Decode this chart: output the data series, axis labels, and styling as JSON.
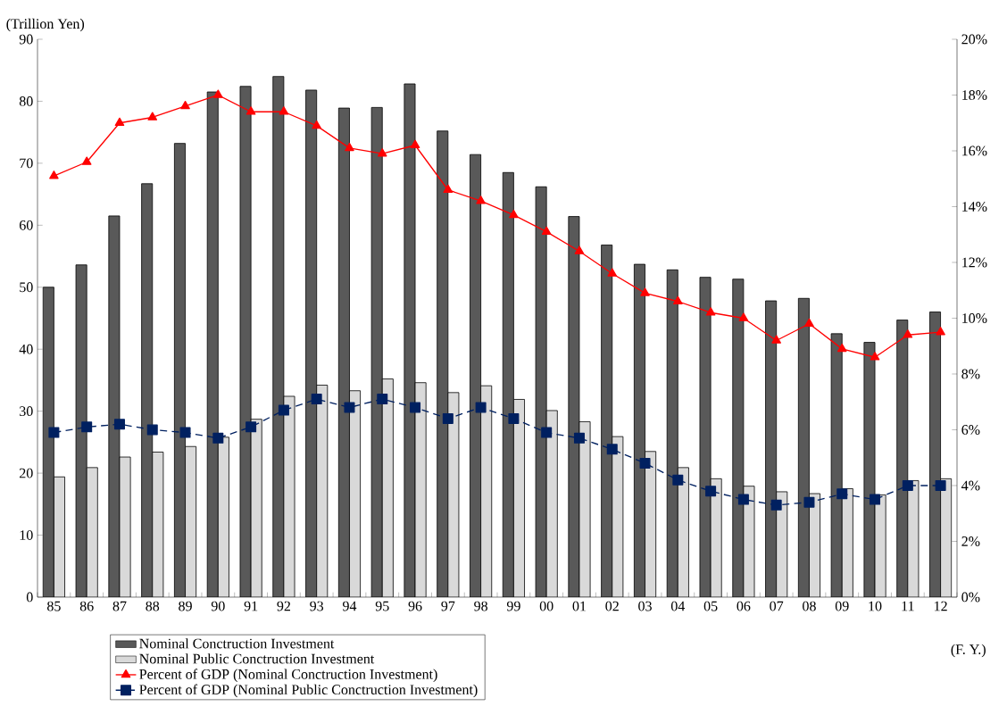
{
  "chart_data": {
    "type": "bar",
    "ylabel": "(Trillion Yen)",
    "xlabel": "(F. Y.)",
    "categories": [
      "85",
      "86",
      "87",
      "88",
      "89",
      "90",
      "91",
      "92",
      "93",
      "94",
      "95",
      "96",
      "97",
      "98",
      "99",
      "00",
      "01",
      "02",
      "03",
      "04",
      "05",
      "06",
      "07",
      "08",
      "09",
      "10",
      "11",
      "12"
    ],
    "series": [
      {
        "name": "Nominal Conctruction Investment",
        "color": "#595959",
        "values": [
          50.0,
          53.6,
          61.5,
          66.7,
          73.2,
          81.5,
          82.4,
          84.0,
          81.8,
          78.9,
          79.0,
          82.8,
          75.2,
          71.4,
          68.5,
          66.2,
          61.4,
          56.8,
          53.7,
          52.8,
          51.6,
          51.3,
          47.8,
          48.2,
          42.5,
          41.1,
          44.7,
          46.0
        ]
      },
      {
        "name": "Nominal Public Conctruction Investment",
        "color": "#d9d9d9",
        "values": [
          19.4,
          20.9,
          22.6,
          23.4,
          24.3,
          25.8,
          28.7,
          32.4,
          34.2,
          33.3,
          35.2,
          34.6,
          33.0,
          34.1,
          31.9,
          30.1,
          28.3,
          25.9,
          23.5,
          20.9,
          19.1,
          17.9,
          17.0,
          16.7,
          17.5,
          16.5,
          18.8,
          19.1
        ]
      },
      {
        "name": "Percent of GDP (Nominal Conctruction Investment)",
        "type": "line",
        "axis": "y2",
        "color": "#ff0000",
        "marker": "triangle",
        "line_style": "solid",
        "values": [
          15.1,
          15.6,
          17.0,
          17.2,
          17.6,
          18.0,
          17.4,
          17.4,
          16.9,
          16.1,
          15.9,
          16.2,
          14.6,
          14.2,
          13.7,
          13.1,
          12.4,
          11.6,
          10.9,
          10.6,
          10.2,
          10.0,
          9.2,
          9.8,
          8.9,
          8.6,
          9.4,
          9.5
        ]
      },
      {
        "name": "Percent of GDP (Nominal Public Conctruction Investment)",
        "type": "line",
        "axis": "y2",
        "color": "#002060",
        "marker": "square",
        "line_style": "dashed",
        "values": [
          5.9,
          6.1,
          6.2,
          6.0,
          5.9,
          5.7,
          6.1,
          6.7,
          7.1,
          6.8,
          7.1,
          6.8,
          6.4,
          6.8,
          6.4,
          5.9,
          5.7,
          5.3,
          4.8,
          4.2,
          3.8,
          3.5,
          3.3,
          3.4,
          3.7,
          3.5,
          4.0,
          4.0
        ]
      }
    ],
    "ylim": [
      0,
      90
    ],
    "yticks": [
      0,
      10,
      20,
      30,
      40,
      50,
      60,
      70,
      80,
      90
    ],
    "y2lim": [
      0,
      20
    ],
    "y2ticks": [
      {
        "value": 0,
        "label": "0%"
      },
      {
        "value": 2,
        "label": "2%"
      },
      {
        "value": 4,
        "label": "4%"
      },
      {
        "value": 6,
        "label": "6%"
      },
      {
        "value": 8,
        "label": "8%"
      },
      {
        "value": 10,
        "label": "10%"
      },
      {
        "value": 12,
        "label": "12%"
      },
      {
        "value": 14,
        "label": "14%"
      },
      {
        "value": 16,
        "label": "16%"
      },
      {
        "value": 18,
        "label": "18%"
      },
      {
        "value": 20,
        "label": "20%"
      }
    ],
    "grid": false,
    "legend": "bottom"
  }
}
